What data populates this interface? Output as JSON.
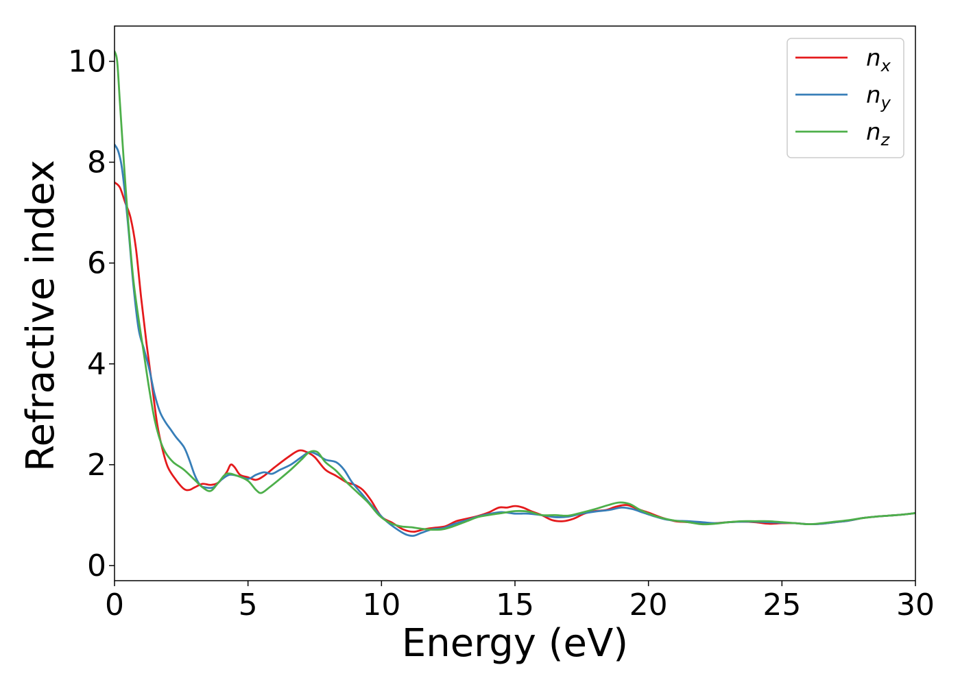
{
  "chart_data": {
    "type": "line",
    "title": "",
    "xlabel": "Energy (eV)",
    "ylabel": "Refractive index",
    "xlim": [
      0,
      30
    ],
    "ylim": [
      -0.3,
      10.7
    ],
    "xticks": [
      0,
      5,
      10,
      15,
      20,
      25,
      30
    ],
    "yticks": [
      0,
      2,
      4,
      6,
      8,
      10
    ],
    "grid": false,
    "legend_position": "top-right",
    "series": [
      {
        "name": "n_x",
        "label_base": "n",
        "label_sub": "x",
        "color": "#e41a1c",
        "points": [
          [
            0,
            7.6
          ],
          [
            0.2,
            7.5
          ],
          [
            0.4,
            7.2
          ],
          [
            0.6,
            6.9
          ],
          [
            0.8,
            6.3
          ],
          [
            1.0,
            5.3
          ],
          [
            1.2,
            4.4
          ],
          [
            1.4,
            3.6
          ],
          [
            1.6,
            2.8
          ],
          [
            1.8,
            2.3
          ],
          [
            2.0,
            1.95
          ],
          [
            2.3,
            1.7
          ],
          [
            2.6,
            1.52
          ],
          [
            2.8,
            1.5
          ],
          [
            3.0,
            1.55
          ],
          [
            3.3,
            1.62
          ],
          [
            3.6,
            1.6
          ],
          [
            3.9,
            1.65
          ],
          [
            4.2,
            1.85
          ],
          [
            4.35,
            2.0
          ],
          [
            4.5,
            1.95
          ],
          [
            4.7,
            1.8
          ],
          [
            5.0,
            1.75
          ],
          [
            5.3,
            1.7
          ],
          [
            5.6,
            1.78
          ],
          [
            6.0,
            1.95
          ],
          [
            6.5,
            2.15
          ],
          [
            6.9,
            2.28
          ],
          [
            7.2,
            2.25
          ],
          [
            7.5,
            2.15
          ],
          [
            7.9,
            1.9
          ],
          [
            8.3,
            1.78
          ],
          [
            8.7,
            1.65
          ],
          [
            9.0,
            1.6
          ],
          [
            9.3,
            1.5
          ],
          [
            9.6,
            1.3
          ],
          [
            10.0,
            0.97
          ],
          [
            10.4,
            0.85
          ],
          [
            10.8,
            0.72
          ],
          [
            11.2,
            0.67
          ],
          [
            11.6,
            0.72
          ],
          [
            12.0,
            0.75
          ],
          [
            12.4,
            0.78
          ],
          [
            12.8,
            0.88
          ],
          [
            13.2,
            0.93
          ],
          [
            13.6,
            0.98
          ],
          [
            14.0,
            1.05
          ],
          [
            14.4,
            1.15
          ],
          [
            14.7,
            1.15
          ],
          [
            15.0,
            1.18
          ],
          [
            15.3,
            1.15
          ],
          [
            15.6,
            1.08
          ],
          [
            16.0,
            1.0
          ],
          [
            16.4,
            0.9
          ],
          [
            16.8,
            0.88
          ],
          [
            17.2,
            0.93
          ],
          [
            17.6,
            1.03
          ],
          [
            18.0,
            1.08
          ],
          [
            18.4,
            1.1
          ],
          [
            18.8,
            1.17
          ],
          [
            19.2,
            1.2
          ],
          [
            19.6,
            1.12
          ],
          [
            20.0,
            1.05
          ],
          [
            20.5,
            0.95
          ],
          [
            21.0,
            0.88
          ],
          [
            21.5,
            0.86
          ],
          [
            22.0,
            0.83
          ],
          [
            22.5,
            0.84
          ],
          [
            23.0,
            0.86
          ],
          [
            23.5,
            0.87
          ],
          [
            24.0,
            0.86
          ],
          [
            24.5,
            0.83
          ],
          [
            25.0,
            0.84
          ],
          [
            25.5,
            0.84
          ],
          [
            26.0,
            0.82
          ],
          [
            26.5,
            0.83
          ],
          [
            27.0,
            0.86
          ],
          [
            27.5,
            0.89
          ],
          [
            28.0,
            0.94
          ],
          [
            28.5,
            0.97
          ],
          [
            29.0,
            0.99
          ],
          [
            29.5,
            1.01
          ],
          [
            30.0,
            1.04
          ]
        ]
      },
      {
        "name": "n_y",
        "label_base": "n",
        "label_sub": "y",
        "color": "#377eb8",
        "points": [
          [
            0,
            8.35
          ],
          [
            0.15,
            8.2
          ],
          [
            0.3,
            7.8
          ],
          [
            0.5,
            6.8
          ],
          [
            0.7,
            5.6
          ],
          [
            0.9,
            4.7
          ],
          [
            1.1,
            4.3
          ],
          [
            1.3,
            3.9
          ],
          [
            1.5,
            3.4
          ],
          [
            1.7,
            3.05
          ],
          [
            1.9,
            2.85
          ],
          [
            2.1,
            2.7
          ],
          [
            2.3,
            2.55
          ],
          [
            2.6,
            2.35
          ],
          [
            2.8,
            2.1
          ],
          [
            3.0,
            1.8
          ],
          [
            3.2,
            1.6
          ],
          [
            3.4,
            1.55
          ],
          [
            3.7,
            1.55
          ],
          [
            4.0,
            1.7
          ],
          [
            4.3,
            1.8
          ],
          [
            4.6,
            1.78
          ],
          [
            5.0,
            1.72
          ],
          [
            5.3,
            1.8
          ],
          [
            5.6,
            1.85
          ],
          [
            5.9,
            1.82
          ],
          [
            6.2,
            1.9
          ],
          [
            6.6,
            2.0
          ],
          [
            7.0,
            2.15
          ],
          [
            7.3,
            2.25
          ],
          [
            7.6,
            2.2
          ],
          [
            7.9,
            2.1
          ],
          [
            8.3,
            2.05
          ],
          [
            8.6,
            1.9
          ],
          [
            8.9,
            1.65
          ],
          [
            9.3,
            1.4
          ],
          [
            9.7,
            1.15
          ],
          [
            10.1,
            0.92
          ],
          [
            10.5,
            0.75
          ],
          [
            10.9,
            0.62
          ],
          [
            11.2,
            0.59
          ],
          [
            11.5,
            0.65
          ],
          [
            11.9,
            0.72
          ],
          [
            12.3,
            0.74
          ],
          [
            12.7,
            0.82
          ],
          [
            13.2,
            0.9
          ],
          [
            13.6,
            0.97
          ],
          [
            14.0,
            1.02
          ],
          [
            14.5,
            1.06
          ],
          [
            15.0,
            1.03
          ],
          [
            15.5,
            1.03
          ],
          [
            16.0,
            1.0
          ],
          [
            16.5,
            0.96
          ],
          [
            17.0,
            0.97
          ],
          [
            17.5,
            1.03
          ],
          [
            18.0,
            1.07
          ],
          [
            18.5,
            1.1
          ],
          [
            19.0,
            1.15
          ],
          [
            19.4,
            1.12
          ],
          [
            19.8,
            1.05
          ],
          [
            20.2,
            0.98
          ],
          [
            20.6,
            0.92
          ],
          [
            21.0,
            0.89
          ],
          [
            21.5,
            0.88
          ],
          [
            22.0,
            0.86
          ],
          [
            22.5,
            0.84
          ],
          [
            23.0,
            0.86
          ],
          [
            23.5,
            0.87
          ],
          [
            24.0,
            0.87
          ],
          [
            24.5,
            0.86
          ],
          [
            25.0,
            0.85
          ],
          [
            25.5,
            0.84
          ],
          [
            26.0,
            0.82
          ],
          [
            26.5,
            0.83
          ],
          [
            27.0,
            0.86
          ],
          [
            27.5,
            0.89
          ],
          [
            28.0,
            0.94
          ],
          [
            28.5,
            0.97
          ],
          [
            29.0,
            0.99
          ],
          [
            29.5,
            1.01
          ],
          [
            30.0,
            1.04
          ]
        ]
      },
      {
        "name": "n_z",
        "label_base": "n",
        "label_sub": "z",
        "color": "#4daf4a",
        "points": [
          [
            0,
            10.2
          ],
          [
            0.1,
            10.0
          ],
          [
            0.2,
            9.2
          ],
          [
            0.35,
            8.0
          ],
          [
            0.5,
            6.9
          ],
          [
            0.7,
            5.7
          ],
          [
            0.9,
            4.9
          ],
          [
            1.1,
            4.2
          ],
          [
            1.3,
            3.5
          ],
          [
            1.5,
            2.9
          ],
          [
            1.7,
            2.5
          ],
          [
            1.9,
            2.25
          ],
          [
            2.2,
            2.05
          ],
          [
            2.6,
            1.9
          ],
          [
            3.0,
            1.7
          ],
          [
            3.3,
            1.55
          ],
          [
            3.6,
            1.48
          ],
          [
            3.9,
            1.65
          ],
          [
            4.2,
            1.82
          ],
          [
            4.6,
            1.78
          ],
          [
            5.0,
            1.68
          ],
          [
            5.3,
            1.5
          ],
          [
            5.5,
            1.44
          ],
          [
            5.8,
            1.55
          ],
          [
            6.2,
            1.72
          ],
          [
            6.6,
            1.9
          ],
          [
            7.0,
            2.1
          ],
          [
            7.3,
            2.25
          ],
          [
            7.6,
            2.25
          ],
          [
            7.9,
            2.05
          ],
          [
            8.3,
            1.88
          ],
          [
            8.7,
            1.65
          ],
          [
            9.1,
            1.45
          ],
          [
            9.5,
            1.25
          ],
          [
            9.9,
            1.0
          ],
          [
            10.3,
            0.85
          ],
          [
            10.7,
            0.78
          ],
          [
            11.1,
            0.76
          ],
          [
            11.5,
            0.73
          ],
          [
            11.9,
            0.71
          ],
          [
            12.3,
            0.72
          ],
          [
            12.7,
            0.78
          ],
          [
            13.2,
            0.88
          ],
          [
            13.6,
            0.96
          ],
          [
            14.0,
            1.0
          ],
          [
            14.5,
            1.04
          ],
          [
            15.0,
            1.08
          ],
          [
            15.5,
            1.07
          ],
          [
            16.0,
            1.0
          ],
          [
            16.5,
            1.0
          ],
          [
            17.0,
            0.99
          ],
          [
            17.5,
            1.05
          ],
          [
            18.0,
            1.12
          ],
          [
            18.5,
            1.2
          ],
          [
            18.9,
            1.25
          ],
          [
            19.3,
            1.22
          ],
          [
            19.7,
            1.1
          ],
          [
            20.2,
            0.99
          ],
          [
            20.6,
            0.93
          ],
          [
            21.0,
            0.89
          ],
          [
            21.5,
            0.86
          ],
          [
            22.0,
            0.82
          ],
          [
            22.5,
            0.83
          ],
          [
            23.0,
            0.86
          ],
          [
            23.5,
            0.88
          ],
          [
            24.0,
            0.88
          ],
          [
            24.5,
            0.88
          ],
          [
            25.0,
            0.86
          ],
          [
            25.5,
            0.84
          ],
          [
            26.0,
            0.82
          ],
          [
            26.5,
            0.84
          ],
          [
            27.0,
            0.87
          ],
          [
            27.5,
            0.9
          ],
          [
            28.0,
            0.94
          ],
          [
            28.5,
            0.97
          ],
          [
            29.0,
            0.99
          ],
          [
            29.5,
            1.01
          ],
          [
            30.0,
            1.04
          ]
        ]
      }
    ]
  }
}
